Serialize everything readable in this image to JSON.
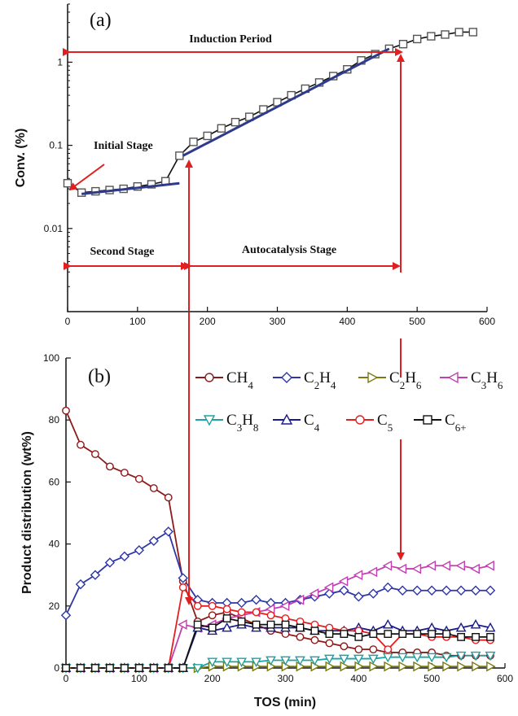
{
  "chart_data": [
    {
      "panel_label": "(a)",
      "type": "scatter",
      "xlim": [
        0,
        600
      ],
      "ylim": [
        0.001,
        5
      ],
      "yscale": "log",
      "ylabel": "Conv. (%)",
      "x_ticks": [
        "0",
        "100",
        "200",
        "300",
        "400",
        "500",
        "600"
      ],
      "x_tick_values": [
        0,
        100,
        200,
        300,
        400,
        500,
        600
      ],
      "y_ticks": [
        "0.01",
        "0.1",
        "1"
      ],
      "y_tick_values": [
        0.01,
        0.1,
        1
      ],
      "series": [
        {
          "name": "Conv.",
          "marker": "square",
          "color": "#111111",
          "x": [
            0,
            20,
            40,
            60,
            80,
            100,
            120,
            140,
            160,
            180,
            200,
            220,
            240,
            260,
            280,
            300,
            320,
            340,
            360,
            380,
            400,
            420,
            440,
            460,
            480,
            500,
            520,
            540,
            560,
            580
          ],
          "y": [
            0.035,
            0.027,
            0.028,
            0.029,
            0.03,
            0.032,
            0.034,
            0.037,
            0.075,
            0.11,
            0.13,
            0.16,
            0.19,
            0.22,
            0.27,
            0.33,
            0.4,
            0.48,
            0.57,
            0.68,
            0.82,
            1.05,
            1.25,
            1.45,
            1.65,
            1.9,
            2.05,
            2.15,
            2.3,
            2.3
          ]
        }
      ],
      "fits": [
        {
          "x": [
            20,
            160
          ],
          "y": [
            0.026,
            0.035
          ],
          "color": "#2e3a8c"
        },
        {
          "x": [
            165,
            460
          ],
          "y": [
            0.075,
            1.45
          ],
          "color": "#2e3a8c"
        }
      ],
      "annotations": {
        "induction": "Induction Period",
        "initial": "Initial Stage",
        "second": "Second Stage",
        "autocatalysis": "Autocatalysis Stage"
      }
    },
    {
      "panel_label": "(b)",
      "type": "line",
      "xlim": [
        0,
        600
      ],
      "ylim": [
        0,
        100
      ],
      "xlabel": "TOS (min)",
      "ylabel": "Product distribution (wt%)",
      "x_ticks": [
        "0",
        "100",
        "200",
        "300",
        "400",
        "500",
        "600"
      ],
      "x_tick_values": [
        0,
        100,
        200,
        300,
        400,
        500,
        600
      ],
      "y_ticks": [
        "0",
        "20",
        "40",
        "60",
        "80",
        "100"
      ],
      "y_tick_values": [
        0,
        20,
        40,
        60,
        80,
        100
      ],
      "x": [
        0,
        20,
        40,
        60,
        80,
        100,
        120,
        140,
        160,
        180,
        200,
        220,
        240,
        260,
        280,
        300,
        320,
        340,
        360,
        380,
        400,
        420,
        440,
        460,
        480,
        500,
        520,
        540,
        560,
        580
      ],
      "series": [
        {
          "name": "CH4",
          "label_main": "CH",
          "label_sub": "4",
          "marker": "circle",
          "color": "#8b1a1a",
          "values": [
            83,
            72,
            69,
            65,
            63,
            61,
            58,
            55,
            28,
            15,
            17,
            18,
            16,
            14,
            12,
            11,
            10,
            9,
            8,
            7,
            6,
            6,
            5,
            5,
            5,
            5,
            4,
            4,
            4,
            4
          ]
        },
        {
          "name": "C2H4",
          "label_main": "C",
          "label_sub": "2",
          "label_main2": "H",
          "label_sub2": "4",
          "marker": "diamond",
          "color": "#2e36a8",
          "values": [
            17,
            27,
            30,
            34,
            36,
            38,
            41,
            44,
            29,
            22,
            21,
            21,
            21,
            22,
            21,
            21,
            22,
            23,
            24,
            25,
            23,
            24,
            26,
            25,
            25,
            25,
            25,
            25,
            25,
            25
          ]
        },
        {
          "name": "C2H6",
          "label_main": "C",
          "label_sub": "2",
          "label_main2": "H",
          "label_sub2": "6",
          "marker": "triangle-right",
          "color": "#7a7a10",
          "values": [
            0,
            0,
            0,
            0,
            0,
            0,
            0,
            0,
            0,
            0,
            0.5,
            0.5,
            0.5,
            0.5,
            0.5,
            0.5,
            0.5,
            0.5,
            0.5,
            0.5,
            0.5,
            0.5,
            0.5,
            0.5,
            0.5,
            0.5,
            0.5,
            0.5,
            0.5,
            0.5
          ]
        },
        {
          "name": "C3H6",
          "label_main": "C",
          "label_sub": "3",
          "label_main2": "H",
          "label_sub2": "6",
          "marker": "triangle-left",
          "color": "#c040b0",
          "values": [
            0,
            0,
            0,
            0,
            0,
            0,
            0,
            0,
            14,
            13,
            14,
            16,
            17,
            18,
            19,
            20,
            22,
            24,
            26,
            28,
            30,
            31,
            33,
            32,
            32,
            33,
            33,
            33,
            32,
            33
          ]
        },
        {
          "name": "C3H8",
          "label_main": "C",
          "label_sub": "3",
          "label_main2": "H",
          "label_sub2": "8",
          "marker": "triangle-down",
          "color": "#20a0a0",
          "values": [
            0,
            0,
            0,
            0,
            0,
            0,
            0,
            0,
            0,
            0,
            2,
            2,
            2,
            2,
            2.5,
            2.5,
            2.5,
            2.5,
            3,
            3,
            3,
            3,
            3.5,
            3.5,
            3.5,
            3.5,
            3.5,
            4,
            4,
            4
          ]
        },
        {
          "name": "C4",
          "label_main": "C",
          "label_sub": "4",
          "marker": "triangle-up",
          "color": "#1a1a90",
          "values": [
            0,
            0,
            0,
            0,
            0,
            0,
            0,
            0,
            0,
            13,
            12,
            13,
            14,
            13,
            13,
            13,
            13,
            12,
            12,
            12,
            13,
            12,
            14,
            12,
            12,
            13,
            12,
            13,
            14,
            13
          ]
        },
        {
          "name": "C5",
          "label_main": "C",
          "label_sub": "5",
          "marker": "circle",
          "color": "#e02020",
          "values": [
            0,
            0,
            0,
            0,
            0,
            0,
            0,
            0,
            26,
            20,
            20,
            19,
            18,
            18,
            17,
            16,
            15,
            14,
            13,
            12,
            12,
            11,
            6,
            11,
            11,
            10,
            10,
            10,
            9,
            9
          ]
        },
        {
          "name": "C6+",
          "label_main": "C",
          "label_sub": "6+",
          "marker": "square",
          "color": "#111111",
          "values": [
            0,
            0,
            0,
            0,
            0,
            0,
            0,
            0,
            0,
            14,
            13,
            16,
            15,
            14,
            14,
            14,
            13,
            12,
            11,
            11,
            10,
            11,
            11,
            11,
            11,
            11,
            11,
            10,
            10,
            10
          ]
        }
      ]
    }
  ]
}
